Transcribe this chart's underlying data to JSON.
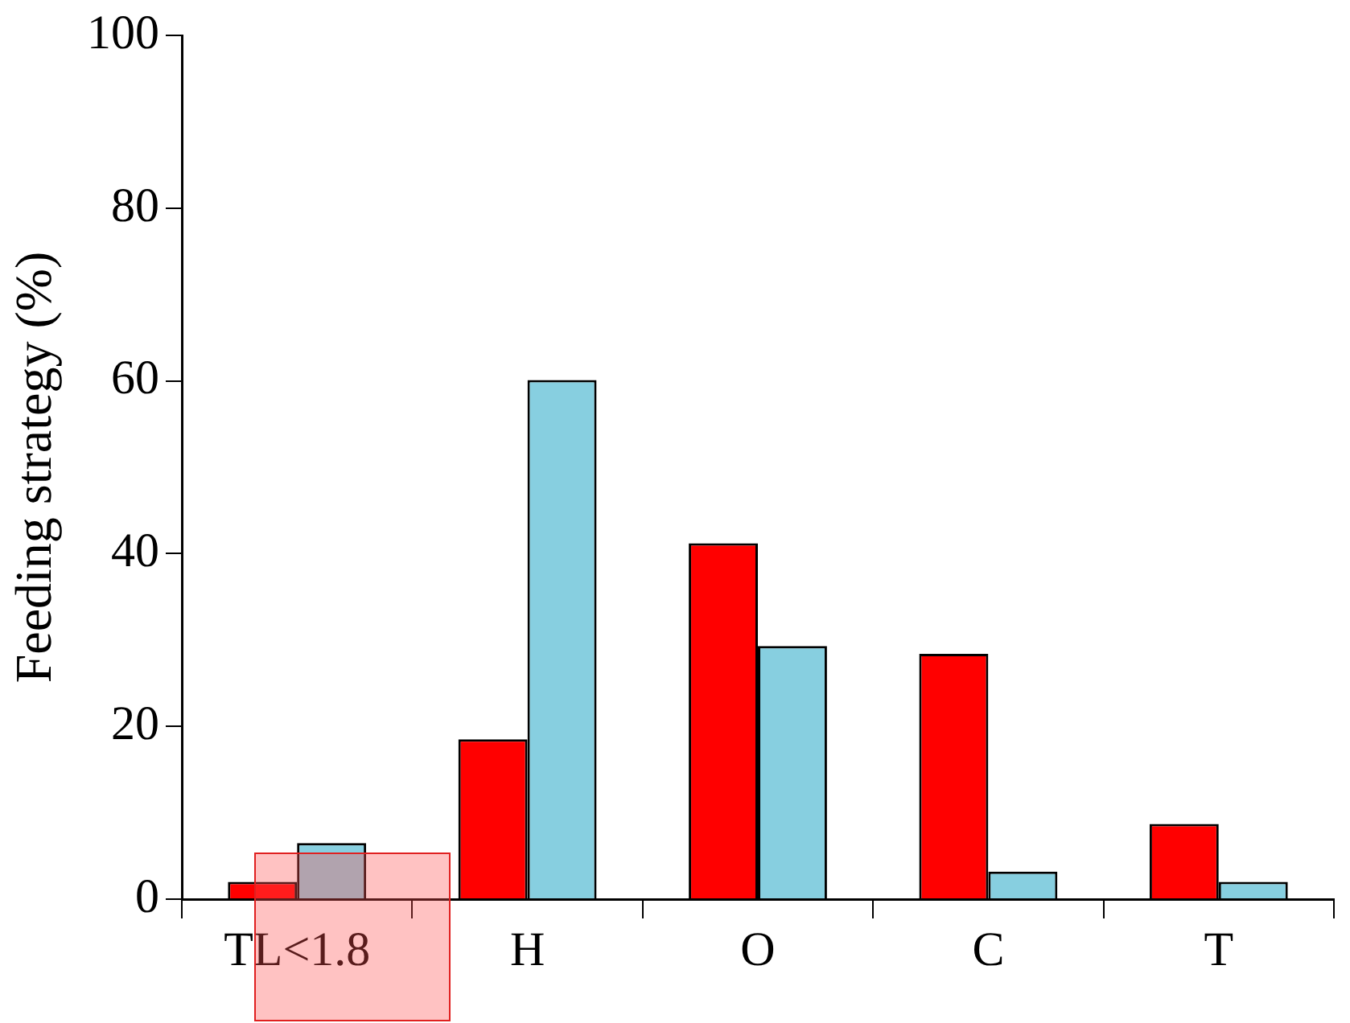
{
  "chart_data": {
    "type": "bar",
    "ylabel": "Feeding strategy (%)",
    "categories": [
      "TL<1.8",
      "H",
      "O",
      "C",
      "T"
    ],
    "series": [
      {
        "color": "#ff0000",
        "values": [
          2.0,
          18.5,
          41.2,
          28.4,
          8.7
        ]
      },
      {
        "color": "#87cfe0",
        "values": [
          6.5,
          60.1,
          29.3,
          3.2,
          2.0
        ]
      }
    ],
    "ylim": [
      0,
      100
    ],
    "yticks": [
      0,
      20,
      40,
      60,
      80,
      100
    ],
    "grid": false,
    "legend": false
  }
}
